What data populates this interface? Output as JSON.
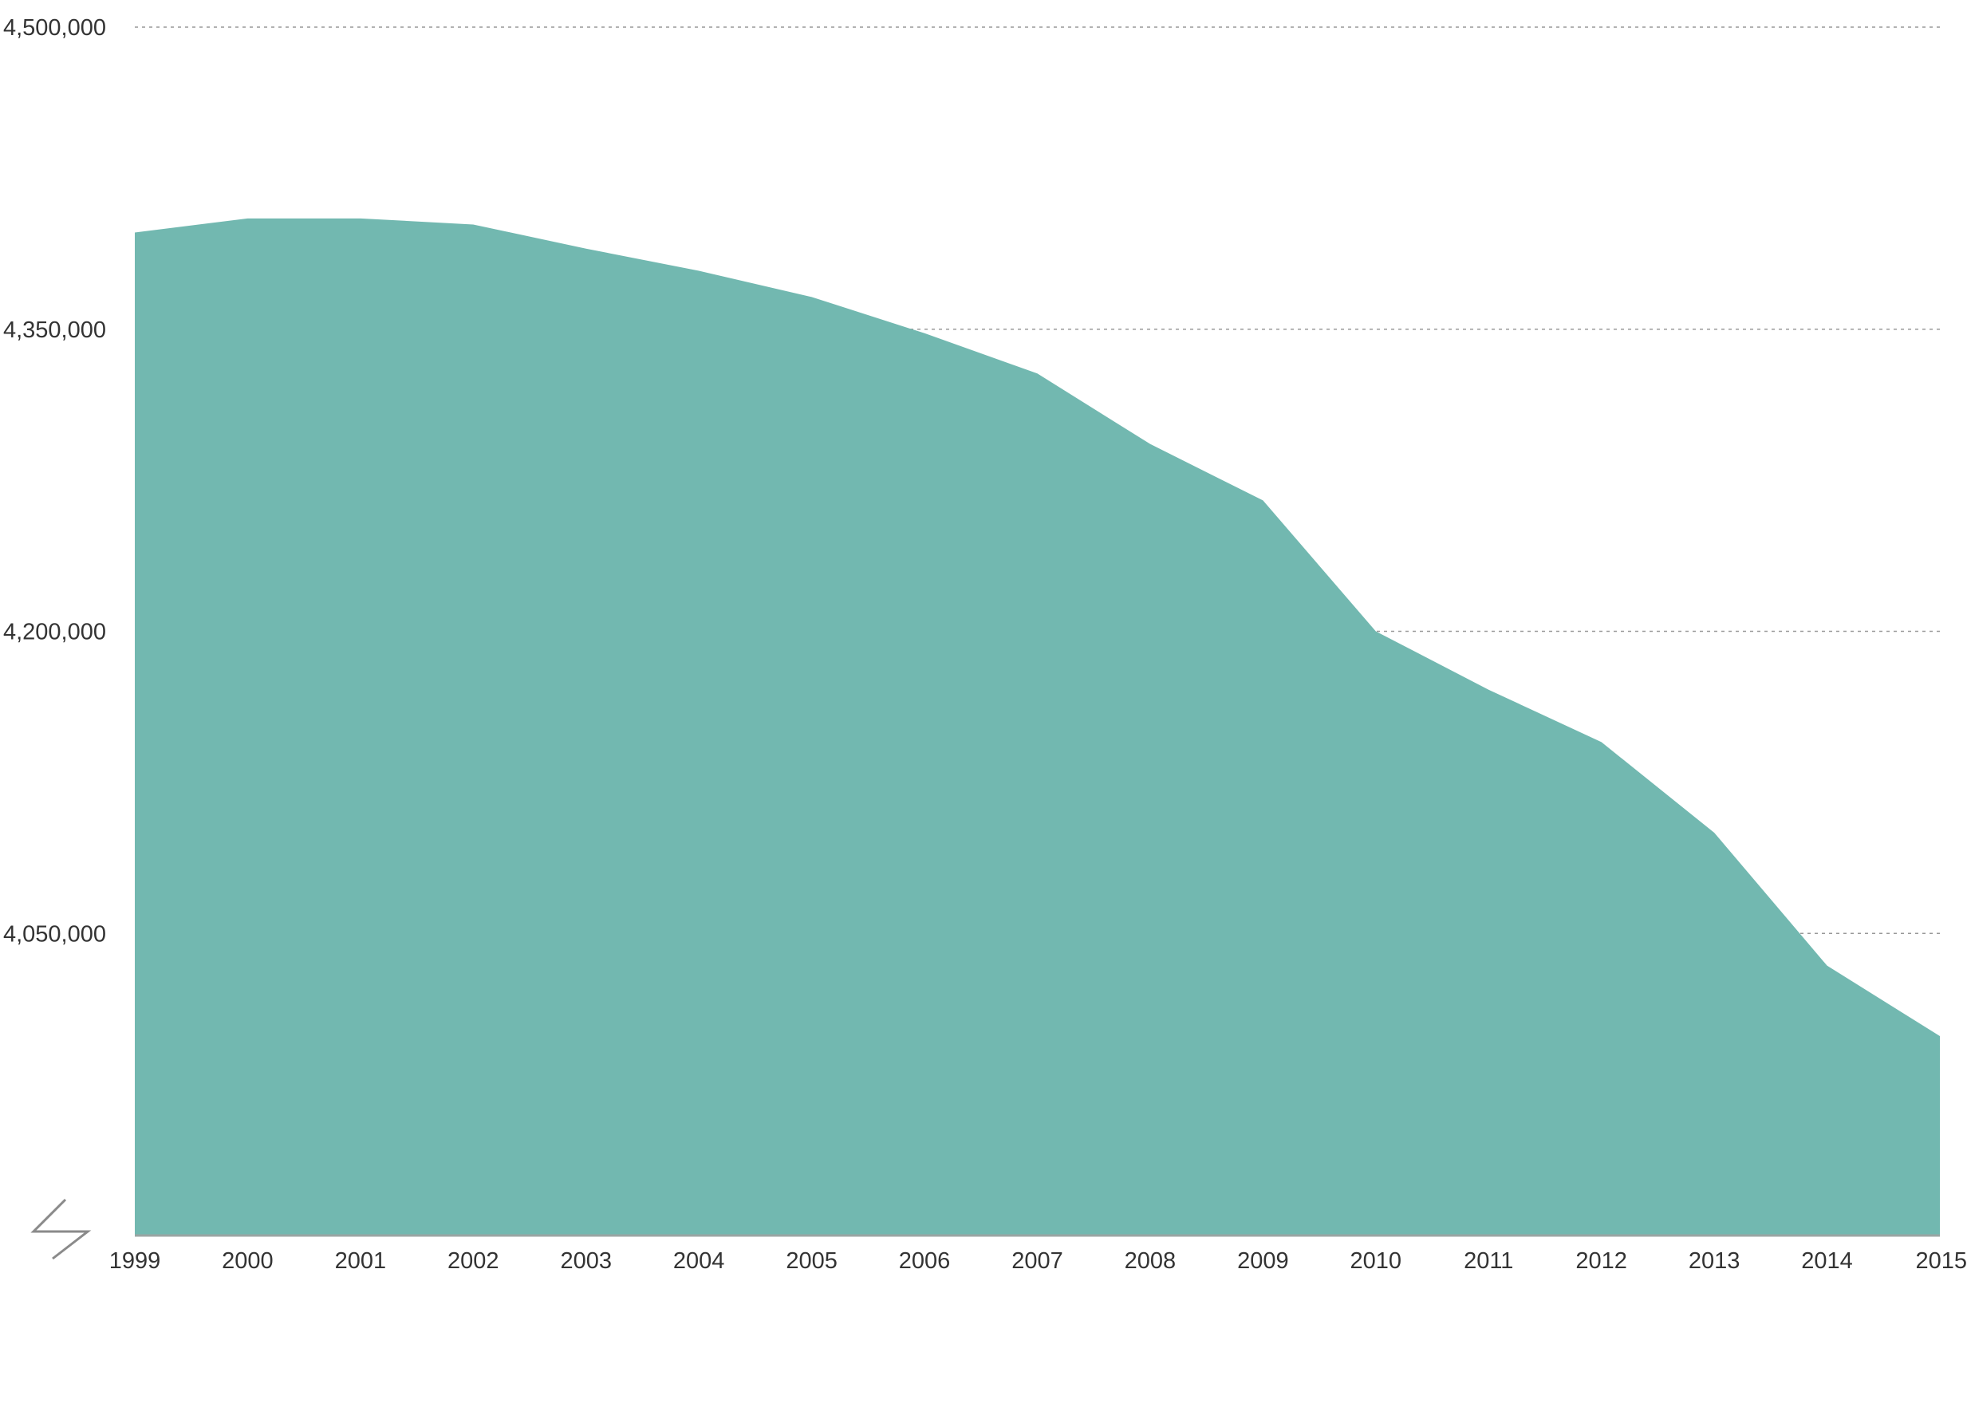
{
  "chart_data": {
    "type": "area",
    "title": "",
    "xlabel": "",
    "ylabel": "",
    "x": [
      "1999",
      "2000",
      "2001",
      "2002",
      "2003",
      "2004",
      "2005",
      "2006",
      "2007",
      "2008",
      "2009",
      "2010",
      "2011",
      "2012",
      "2013",
      "2014",
      "2015"
    ],
    "series": [
      {
        "values": [
          4398000,
          4405000,
          4405000,
          4402000,
          4390000,
          4379000,
          4366000,
          4348000,
          4328000,
          4293000,
          4265000,
          4200000,
          4171000,
          4145000,
          4100000,
          4034000,
          3999000
        ],
        "color": "#72b8b0"
      }
    ],
    "y_ticks": [
      "4,500,000",
      "4,350,000",
      "4,200,000",
      "4,050,000"
    ],
    "y_tick_values": [
      4500000,
      4350000,
      4200000,
      4050000
    ],
    "ylim": [
      3900000,
      4500000
    ],
    "axis_break": true,
    "grid": true
  }
}
